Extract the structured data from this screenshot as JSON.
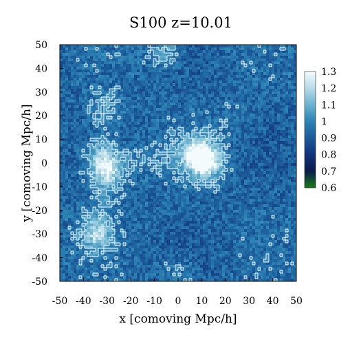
{
  "chart_data": {
    "type": "heatmap",
    "title": "S100 z=10.01",
    "xlabel": "x [comoving Mpc/h]",
    "ylabel": "y [comoving Mpc/h]",
    "xlim": [
      -50,
      50
    ],
    "ylim": [
      -50,
      50
    ],
    "xticks": [
      "-50",
      "-40",
      "-30",
      "-20",
      "-10",
      "0",
      "10",
      "20",
      "30",
      "40",
      "50"
    ],
    "yticks": [
      "50",
      "40",
      "30",
      "20",
      "10",
      "0",
      "-10",
      "-20",
      "-30",
      "-40",
      "-50"
    ],
    "colorbar": {
      "range": [
        0.6,
        1.3
      ],
      "ticks": [
        "1.3",
        "1.2",
        "1.1",
        "1",
        "0.9",
        "0.8",
        "0.7",
        "0.6"
      ],
      "colors": [
        "#1a7a1a",
        "#0a1c4a",
        "#12337a",
        "#1b5a9a",
        "#2c83b4",
        "#6bb3cf",
        "#b7dbe8",
        "#f4fbfd"
      ]
    },
    "density_peaks": [
      {
        "x": 12,
        "y": 0,
        "value": 1.3
      },
      {
        "x": 7,
        "y": 5,
        "value": 1.2
      },
      {
        "x": -30,
        "y": -5,
        "value": 1.15
      },
      {
        "x": -33,
        "y": 3,
        "value": 1.1
      },
      {
        "x": -35,
        "y": -30,
        "value": 1.15
      },
      {
        "x": -5,
        "y": 48,
        "value": 1.1
      },
      {
        "x": -31,
        "y": 23,
        "value": 1.05
      },
      {
        "x": 0,
        "y": -47,
        "value": 1.05
      }
    ],
    "contour_color": "#ffffff",
    "grid": false
  }
}
